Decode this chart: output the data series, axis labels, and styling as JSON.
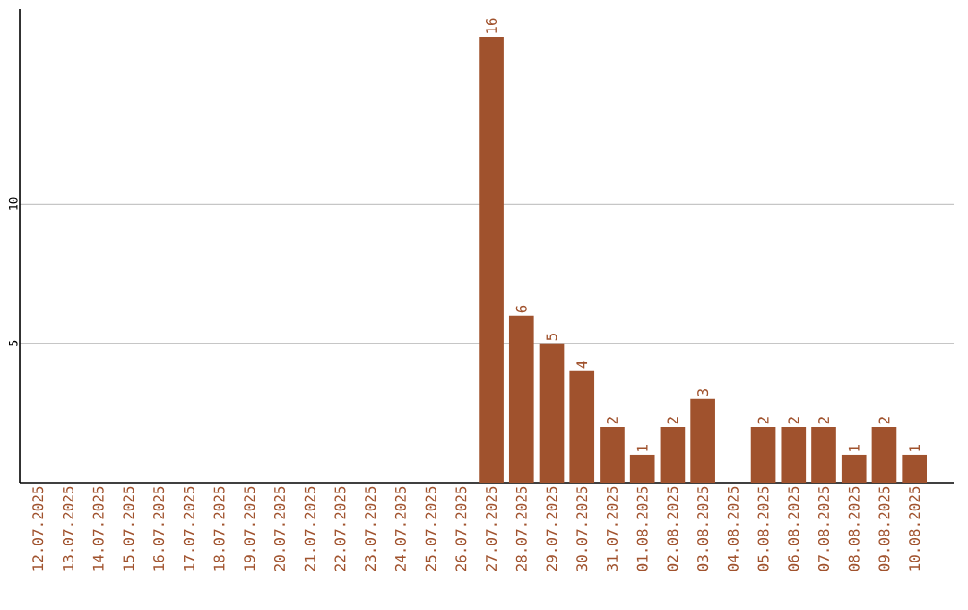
{
  "chart_data": {
    "type": "bar",
    "categories": [
      "12.07.2025",
      "13.07.2025",
      "14.07.2025",
      "15.07.2025",
      "16.07.2025",
      "17.07.2025",
      "18.07.2025",
      "19.07.2025",
      "20.07.2025",
      "21.07.2025",
      "22.07.2025",
      "23.07.2025",
      "24.07.2025",
      "25.07.2025",
      "26.07.2025",
      "27.07.2025",
      "28.07.2025",
      "29.07.2025",
      "30.07.2025",
      "31.07.2025",
      "01.08.2025",
      "02.08.2025",
      "03.08.2025",
      "04.08.2025",
      "05.08.2025",
      "06.08.2025",
      "07.08.2025",
      "08.08.2025",
      "09.08.2025",
      "10.08.2025"
    ],
    "values": [
      0,
      0,
      0,
      0,
      0,
      0,
      0,
      0,
      0,
      0,
      0,
      0,
      0,
      0,
      0,
      16,
      6,
      5,
      4,
      2,
      1,
      2,
      3,
      0,
      2,
      2,
      2,
      1,
      2,
      1
    ],
    "value_labels": [
      null,
      null,
      null,
      null,
      null,
      null,
      null,
      null,
      null,
      null,
      null,
      null,
      null,
      null,
      null,
      "16",
      "6",
      "5",
      "4",
      "2",
      "1",
      "2",
      "3",
      null,
      "2",
      "2",
      "2",
      "1",
      "2",
      "1"
    ],
    "color": "#a0522d",
    "ylim": [
      0,
      17
    ],
    "yticks": [
      5,
      10
    ],
    "grid": "y"
  }
}
